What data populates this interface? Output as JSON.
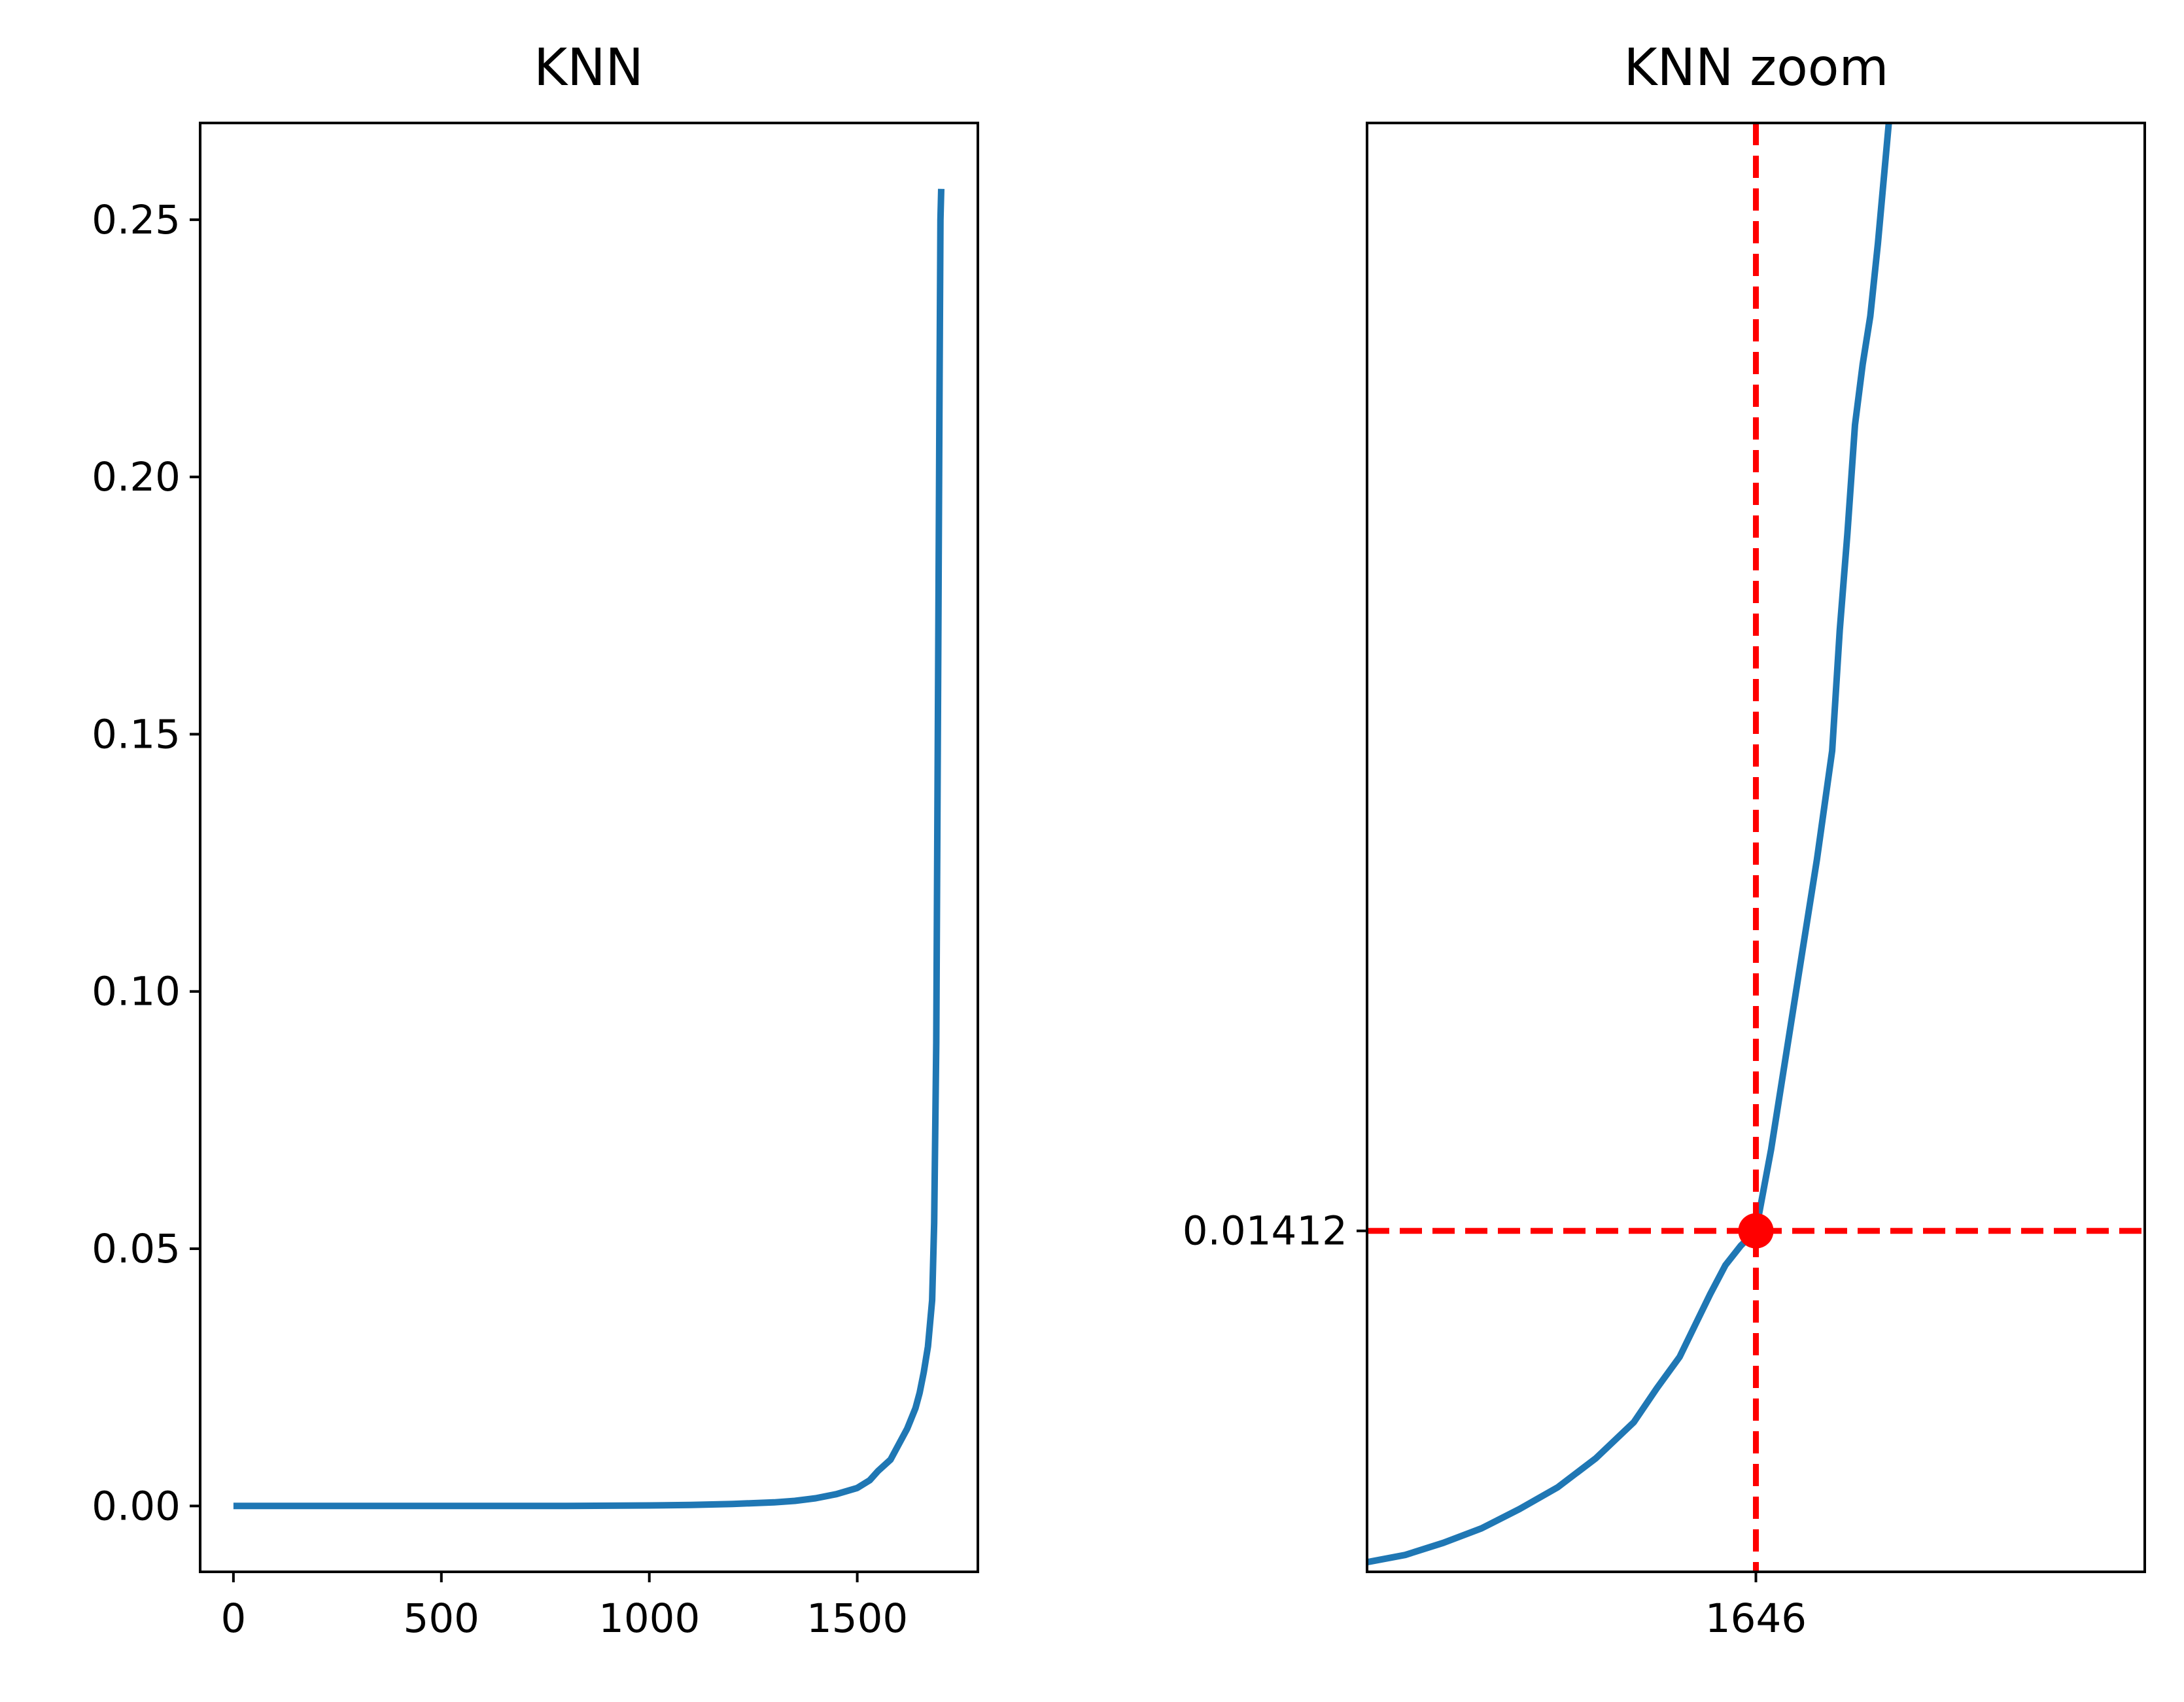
{
  "chart_data": [
    {
      "type": "line",
      "title": "KNN",
      "xlabel": "",
      "ylabel": "",
      "xlim": [
        -80,
        1790
      ],
      "ylim": [
        -0.0128,
        0.2688
      ],
      "xticks": [
        0,
        500,
        1000,
        1500
      ],
      "xtick_labels": [
        "0",
        "500",
        "1000",
        "1500"
      ],
      "yticks": [
        0.0,
        0.05,
        0.1,
        0.15,
        0.2,
        0.25
      ],
      "ytick_labels": [
        "0.00",
        "0.05",
        "0.10",
        "0.15",
        "0.20",
        "0.25"
      ],
      "grid": false,
      "series": [
        {
          "color": "#1f77b4",
          "x": [
            0,
            200,
            400,
            600,
            800,
            1000,
            1100,
            1200,
            1300,
            1350,
            1400,
            1450,
            1500,
            1530,
            1550,
            1580,
            1600,
            1620,
            1640,
            1650,
            1660,
            1670,
            1680,
            1685,
            1690,
            1695,
            1698,
            1700,
            1702
          ],
          "y": [
            0.0,
            0.0,
            0.0,
            0.0,
            0.0,
            0.0001,
            0.0002,
            0.0004,
            0.0007,
            0.001,
            0.0015,
            0.0023,
            0.0035,
            0.005,
            0.0068,
            0.009,
            0.012,
            0.015,
            0.019,
            0.022,
            0.026,
            0.031,
            0.04,
            0.055,
            0.09,
            0.17,
            0.22,
            0.25,
            0.256
          ]
        }
      ]
    },
    {
      "type": "line",
      "title": "KNN zoom",
      "xlabel": "",
      "ylabel": "",
      "xlim": [
        1595,
        1697
      ],
      "ylim": [
        0.0,
        0.06
      ],
      "xticks": [
        1646
      ],
      "xtick_labels": [
        "1646"
      ],
      "yticks": [
        0.01412
      ],
      "ytick_labels": [
        "0.01412"
      ],
      "grid": false,
      "series": [
        {
          "color": "#1f77b4",
          "x": [
            1595,
            1600,
            1605,
            1610,
            1615,
            1620,
            1625,
            1630,
            1633,
            1636,
            1638,
            1640,
            1642,
            1644,
            1646,
            1648,
            1650,
            1652,
            1654,
            1656,
            1657,
            1658,
            1659,
            1660,
            1661,
            1662,
            1663,
            1664
          ],
          "y": [
            0.0004,
            0.0007,
            0.0012,
            0.0018,
            0.0026,
            0.0035,
            0.0047,
            0.0062,
            0.0076,
            0.0089,
            0.0102,
            0.0115,
            0.0127,
            0.0135,
            0.01412,
            0.0175,
            0.0215,
            0.0255,
            0.0295,
            0.034,
            0.039,
            0.043,
            0.0475,
            0.05,
            0.052,
            0.055,
            0.0585,
            0.062
          ]
        }
      ],
      "annotations": {
        "marker": {
          "x": 1646,
          "y": 0.01412,
          "color": "#ff0000"
        },
        "vline": {
          "x": 1646,
          "color": "#ff0000",
          "style": "dashed"
        },
        "hline": {
          "y": 0.01412,
          "color": "#ff0000",
          "style": "dashed"
        }
      }
    }
  ]
}
